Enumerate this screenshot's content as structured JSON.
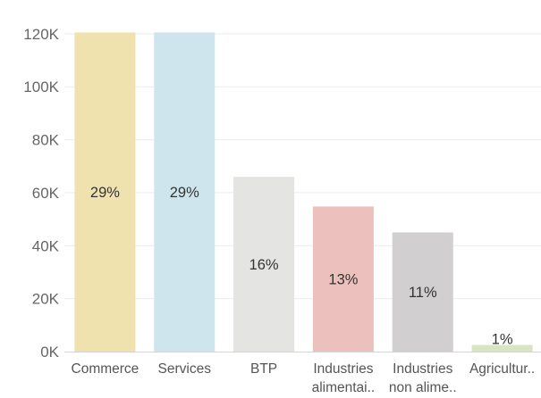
{
  "chart_data": {
    "type": "bar",
    "title": "",
    "xlabel": "",
    "ylabel": "",
    "categories": [
      [
        "Commerce"
      ],
      [
        "Services"
      ],
      [
        "BTP"
      ],
      [
        "Industries",
        "alimentai.."
      ],
      [
        "Industries",
        "non alime.."
      ],
      [
        "Agricultur.."
      ]
    ],
    "values": [
      120500,
      120500,
      66000,
      54800,
      45000,
      2500
    ],
    "data_labels": [
      "29%",
      "29%",
      "16%",
      "13%",
      "11%",
      "1%"
    ],
    "colors": [
      "#f0e2ae",
      "#cfe5ee",
      "#e4e4e2",
      "#ecc1bd",
      "#d1cfcf",
      "#d9e4c0"
    ],
    "ylim": [
      0,
      124000
    ],
    "yticks": [
      {
        "value": 0,
        "label": "0K"
      },
      {
        "value": 20000,
        "label": "20K"
      },
      {
        "value": 40000,
        "label": "40K"
      },
      {
        "value": 60000,
        "label": "60K"
      },
      {
        "value": 80000,
        "label": "80K"
      },
      {
        "value": 100000,
        "label": "100K"
      },
      {
        "value": 120000,
        "label": "120K"
      }
    ],
    "grid": true
  }
}
